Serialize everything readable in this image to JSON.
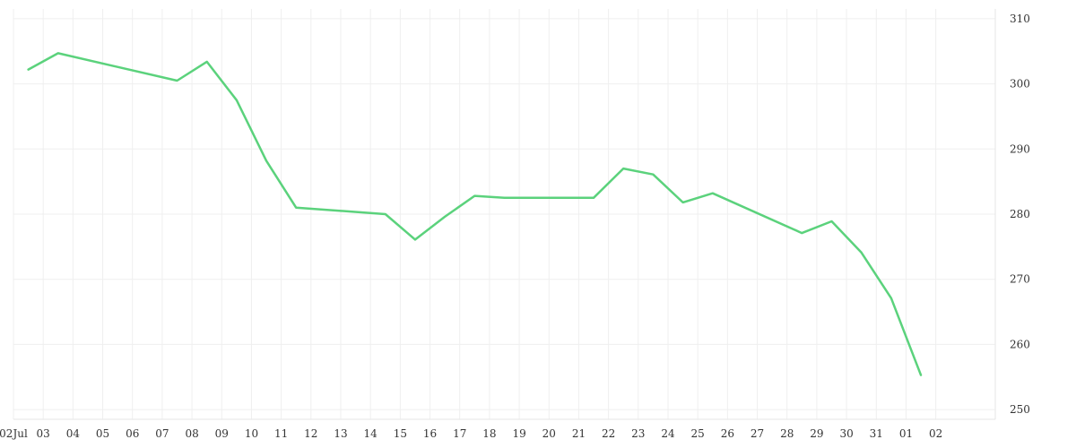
{
  "chart_data": {
    "type": "line",
    "title": "",
    "xlabel": "",
    "ylabel": "",
    "grid": true,
    "y_axis_side": "right",
    "ylim": [
      248.5,
      311.5
    ],
    "yticks": [
      250,
      260,
      270,
      280,
      290,
      300,
      310
    ],
    "ytick_labels": [
      "250",
      "260",
      "270",
      "280",
      "290",
      "300",
      "310"
    ],
    "x_ticks": [
      "2024-07-02",
      "2024-07-03",
      "2024-07-04",
      "2024-07-05",
      "2024-07-06",
      "2024-07-07",
      "2024-07-08",
      "2024-07-09",
      "2024-07-10",
      "2024-07-11",
      "2024-07-12",
      "2024-07-13",
      "2024-07-14",
      "2024-07-15",
      "2024-07-16",
      "2024-07-17",
      "2024-07-18",
      "2024-07-19",
      "2024-07-20",
      "2024-07-21",
      "2024-07-22",
      "2024-07-23",
      "2024-07-24",
      "2024-07-25",
      "2024-07-26",
      "2024-07-27",
      "2024-07-28",
      "2024-07-29",
      "2024-07-30",
      "2024-07-31",
      "2024-08-01",
      "2024-08-02"
    ],
    "x_tick_labels": [
      "02Jul",
      "03",
      "04",
      "05",
      "06",
      "07",
      "08",
      "09",
      "10",
      "11",
      "12",
      "13",
      "14",
      "15",
      "16",
      "17",
      "18",
      "19",
      "20",
      "21",
      "22",
      "23",
      "24",
      "25",
      "26",
      "27",
      "28",
      "29",
      "30",
      "31",
      "01",
      "02"
    ],
    "xlim": [
      "2024-07-02",
      "2024-08-04"
    ],
    "colors": {
      "line": "#5bd27c"
    },
    "series": [
      {
        "x": [
          "2024-07-02T12:00",
          "2024-07-03T12:00",
          "2024-07-07T12:00",
          "2024-07-08T12:00",
          "2024-07-09T12:00",
          "2024-07-10T12:00",
          "2024-07-11T12:00",
          "2024-07-14T12:00",
          "2024-07-15T12:00",
          "2024-07-16T12:00",
          "2024-07-17T12:00",
          "2024-07-18T12:00",
          "2024-07-21T12:00",
          "2024-07-22T12:00",
          "2024-07-23T12:00",
          "2024-07-24T12:00",
          "2024-07-25T12:00",
          "2024-07-28T12:00",
          "2024-07-29T12:00",
          "2024-07-30T12:00",
          "2024-07-31T12:00",
          "2024-08-01T12:00"
        ],
        "values": [
          302.2,
          304.7,
          300.5,
          303.4,
          297.5,
          288.2,
          281.0,
          280.0,
          276.1,
          279.6,
          282.8,
          282.5,
          282.5,
          287.0,
          286.1,
          281.8,
          283.2,
          277.1,
          278.9,
          274.1,
          267.1,
          255.3
        ]
      }
    ]
  }
}
